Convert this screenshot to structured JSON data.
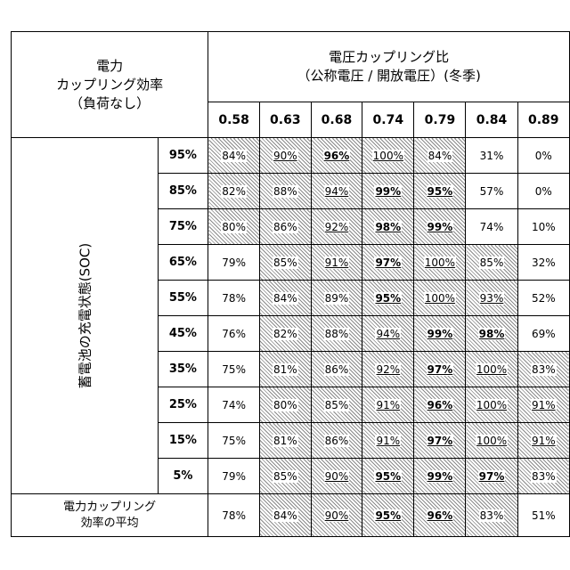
{
  "corner_label": [
    "電力",
    "カップリング効率",
    "（負荷なし）"
  ],
  "header_title": [
    "電圧カップリング比",
    "（公称電圧 / 開放電圧）(冬季)"
  ],
  "ratios": [
    "0.58",
    "0.63",
    "0.68",
    "0.74",
    "0.79",
    "0.84",
    "0.89"
  ],
  "soc_axis_label": "蓄電池の充電状態(SOC)",
  "rows": [
    {
      "soc": "95%",
      "cells": [
        {
          "v": "84%",
          "h": true
        },
        {
          "v": "90%",
          "h": true,
          "u": true
        },
        {
          "v": "96%",
          "h": true,
          "u": true,
          "b": true
        },
        {
          "v": "100%",
          "h": true,
          "u": true
        },
        {
          "v": "84%",
          "h": true
        },
        {
          "v": "31%"
        },
        {
          "v": "0%"
        }
      ]
    },
    {
      "soc": "85%",
      "cells": [
        {
          "v": "82%",
          "h": true
        },
        {
          "v": "88%",
          "h": true
        },
        {
          "v": "94%",
          "h": true,
          "u": true
        },
        {
          "v": "99%",
          "h": true,
          "u": true,
          "b": true
        },
        {
          "v": "95%",
          "h": true,
          "u": true,
          "b": true
        },
        {
          "v": "57%"
        },
        {
          "v": "0%"
        }
      ]
    },
    {
      "soc": "75%",
      "cells": [
        {
          "v": "80%",
          "h": true
        },
        {
          "v": "86%",
          "h": true
        },
        {
          "v": "92%",
          "h": true,
          "u": true
        },
        {
          "v": "98%",
          "h": true,
          "u": true,
          "b": true
        },
        {
          "v": "99%",
          "h": true,
          "u": true,
          "b": true
        },
        {
          "v": "74%"
        },
        {
          "v": "10%"
        }
      ]
    },
    {
      "soc": "65%",
      "cells": [
        {
          "v": "79%"
        },
        {
          "v": "85%",
          "h": true
        },
        {
          "v": "91%",
          "h": true,
          "u": true
        },
        {
          "v": "97%",
          "h": true,
          "u": true,
          "b": true
        },
        {
          "v": "100%",
          "h": true,
          "u": true
        },
        {
          "v": "85%",
          "h": true
        },
        {
          "v": "32%"
        }
      ]
    },
    {
      "soc": "55%",
      "cells": [
        {
          "v": "78%"
        },
        {
          "v": "84%",
          "h": true
        },
        {
          "v": "89%",
          "h": true
        },
        {
          "v": "95%",
          "h": true,
          "u": true,
          "b": true
        },
        {
          "v": "100%",
          "h": true,
          "u": true
        },
        {
          "v": "93%",
          "h": true,
          "u": true
        },
        {
          "v": "52%"
        }
      ]
    },
    {
      "soc": "45%",
      "cells": [
        {
          "v": "76%"
        },
        {
          "v": "82%",
          "h": true
        },
        {
          "v": "88%",
          "h": true
        },
        {
          "v": "94%",
          "h": true,
          "u": true
        },
        {
          "v": "99%",
          "h": true,
          "u": true,
          "b": true
        },
        {
          "v": "98%",
          "h": true,
          "u": true,
          "b": true
        },
        {
          "v": "69%"
        }
      ]
    },
    {
      "soc": "35%",
      "cells": [
        {
          "v": "75%"
        },
        {
          "v": "81%",
          "h": true
        },
        {
          "v": "86%",
          "h": true
        },
        {
          "v": "92%",
          "h": true,
          "u": true
        },
        {
          "v": "97%",
          "h": true,
          "u": true,
          "b": true
        },
        {
          "v": "100%",
          "h": true,
          "u": true
        },
        {
          "v": "83%",
          "h": true
        }
      ]
    },
    {
      "soc": "25%",
      "cells": [
        {
          "v": "74%"
        },
        {
          "v": "80%",
          "h": true
        },
        {
          "v": "85%",
          "h": true
        },
        {
          "v": "91%",
          "h": true,
          "u": true
        },
        {
          "v": "96%",
          "h": true,
          "u": true,
          "b": true
        },
        {
          "v": "100%",
          "h": true,
          "u": true
        },
        {
          "v": "91%",
          "h": true,
          "u": true
        }
      ]
    },
    {
      "soc": "15%",
      "cells": [
        {
          "v": "75%"
        },
        {
          "v": "81%",
          "h": true
        },
        {
          "v": "86%",
          "h": true
        },
        {
          "v": "91%",
          "h": true,
          "u": true
        },
        {
          "v": "97%",
          "h": true,
          "u": true,
          "b": true
        },
        {
          "v": "100%",
          "h": true,
          "u": true
        },
        {
          "v": "91%",
          "h": true,
          "u": true
        }
      ]
    },
    {
      "soc": "5%",
      "cells": [
        {
          "v": "79%"
        },
        {
          "v": "85%",
          "h": true
        },
        {
          "v": "90%",
          "h": true,
          "u": true
        },
        {
          "v": "95%",
          "h": true,
          "u": true,
          "b": true
        },
        {
          "v": "99%",
          "h": true,
          "u": true,
          "b": true
        },
        {
          "v": "97%",
          "h": true,
          "u": true,
          "b": true
        },
        {
          "v": "83%",
          "h": true
        }
      ]
    }
  ],
  "average_label": [
    "電力カップリング",
    "効率の平均"
  ],
  "average_cells": [
    {
      "v": "78%"
    },
    {
      "v": "84%",
      "h": true
    },
    {
      "v": "90%",
      "h": true,
      "u": true
    },
    {
      "v": "95%",
      "h": true,
      "u": true,
      "b": true
    },
    {
      "v": "96%",
      "h": true,
      "u": true,
      "b": true
    },
    {
      "v": "83%",
      "h": true
    },
    {
      "v": "51%"
    }
  ]
}
